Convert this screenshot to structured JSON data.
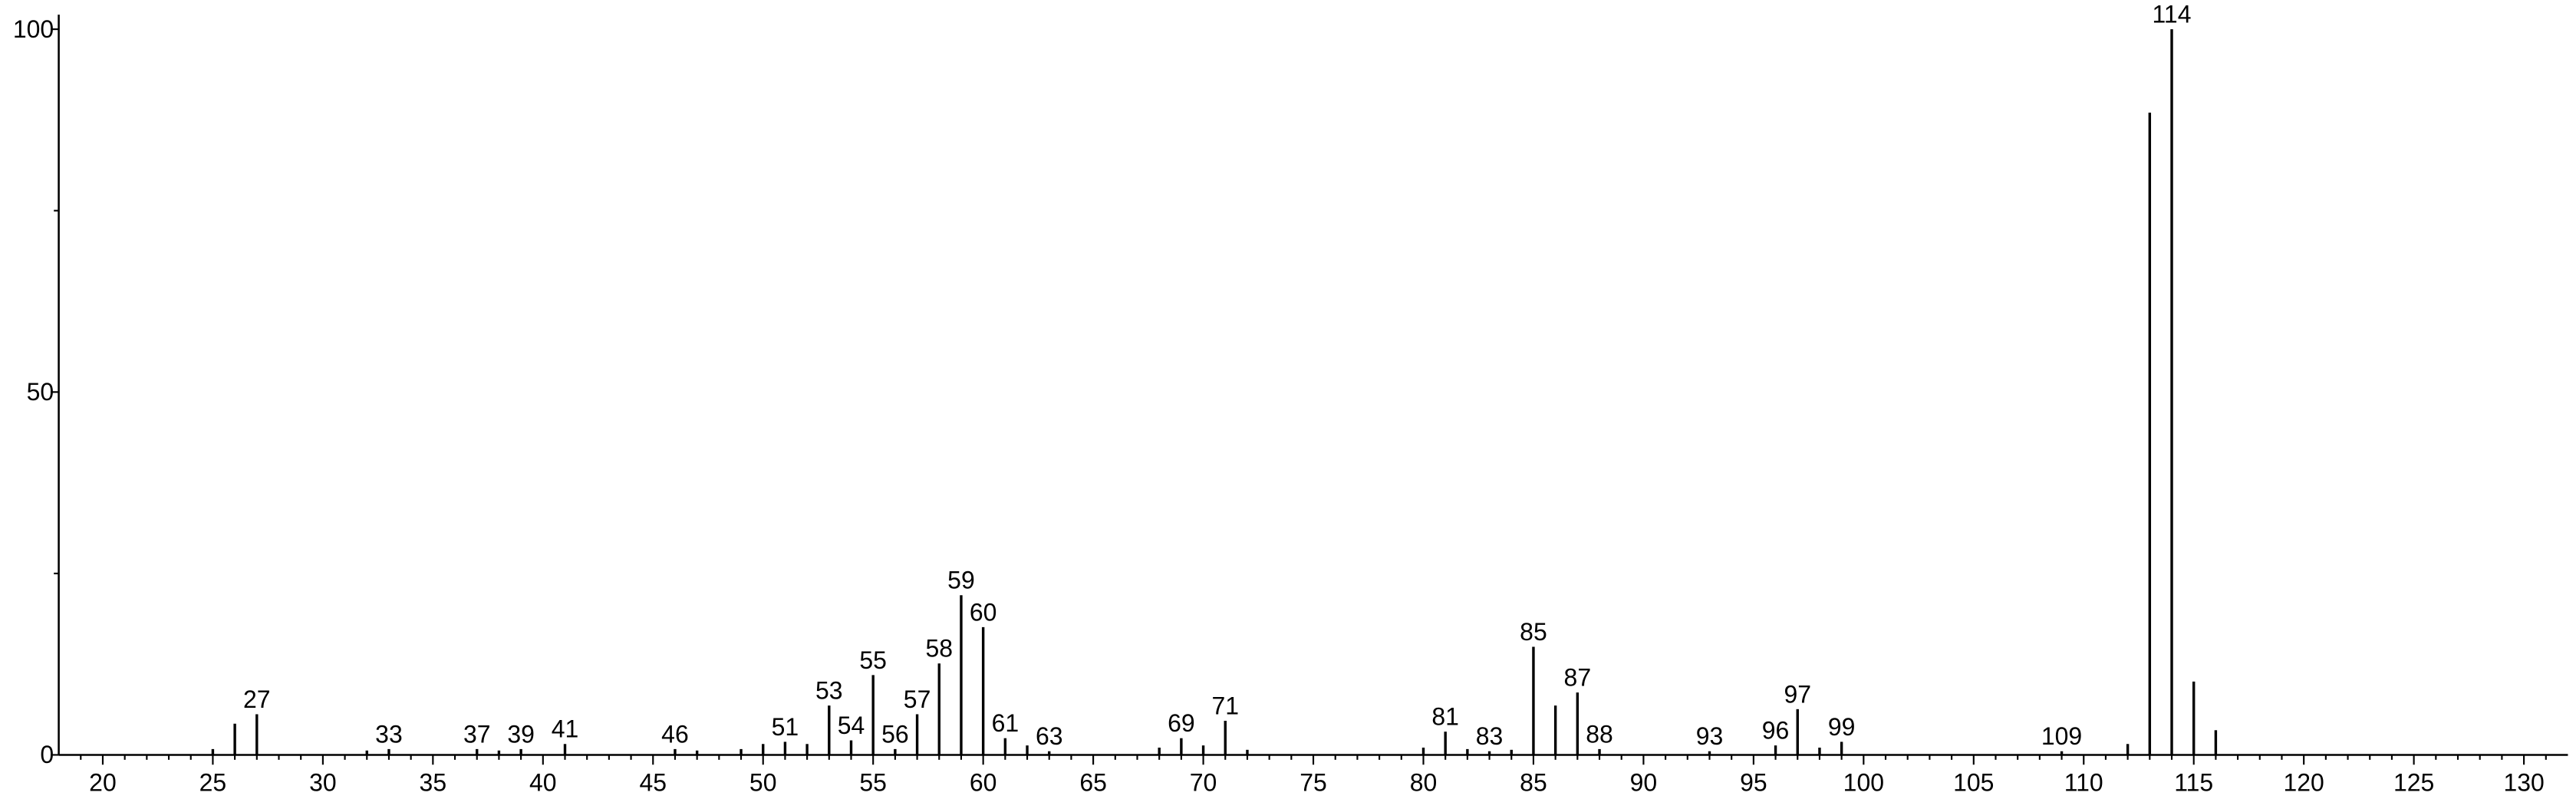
{
  "chart_data": {
    "type": "bar",
    "color": "#000000",
    "x": [
      25,
      26,
      27,
      32,
      33,
      37,
      38,
      39,
      41,
      46,
      47,
      49,
      50,
      51,
      52,
      53,
      54,
      55,
      56,
      57,
      58,
      59,
      60,
      61,
      62,
      63,
      68,
      69,
      70,
      71,
      72,
      80,
      81,
      82,
      83,
      84,
      85,
      86,
      87,
      88,
      93,
      96,
      97,
      98,
      99,
      109,
      112,
      113,
      114,
      115,
      116
    ],
    "values": [
      0.8,
      4.3,
      5.6,
      0.6,
      0.8,
      0.8,
      0.6,
      0.8,
      1.5,
      0.8,
      0.6,
      0.8,
      1.5,
      1.8,
      1.5,
      6.8,
      2,
      11,
      0.8,
      5.6,
      12.6,
      22,
      17.6,
      2.3,
      1.3,
      0.5,
      1,
      2.3,
      1.3,
      4.7,
      0.7,
      1,
      3.2,
      0.8,
      0.5,
      0.7,
      14.9,
      6.8,
      8.6,
      0.8,
      0.5,
      1.3,
      6.3,
      1,
      1.8,
      0.5,
      1.5,
      88.5,
      100,
      10.1,
      3.4
    ],
    "labels": [
      null,
      null,
      "27",
      null,
      "33",
      "37",
      null,
      "39",
      "41",
      "46",
      null,
      null,
      null,
      "51",
      null,
      "53",
      "54",
      "55",
      "56",
      "57",
      "58",
      "59",
      "60",
      "61",
      null,
      "63",
      null,
      "69",
      null,
      "71",
      null,
      null,
      "81",
      null,
      "83",
      null,
      "85",
      null,
      "87",
      "88",
      "93",
      "96",
      "97",
      null,
      "99",
      "109",
      null,
      null,
      "114",
      null,
      null
    ],
    "xlim": [
      18,
      132
    ],
    "ylim": [
      0,
      102
    ],
    "xticks": [
      20,
      25,
      30,
      35,
      40,
      45,
      50,
      55,
      60,
      65,
      70,
      75,
      80,
      85,
      90,
      95,
      100,
      105,
      110,
      115,
      120,
      125,
      130
    ],
    "xminorticks": [
      19,
      21,
      22,
      23,
      24,
      26,
      27,
      28,
      29,
      31,
      32,
      33,
      34,
      36,
      37,
      38,
      39,
      41,
      42,
      43,
      44,
      46,
      47,
      48,
      49,
      51,
      52,
      53,
      54,
      56,
      57,
      58,
      59,
      61,
      62,
      63,
      64,
      66,
      67,
      68,
      69,
      71,
      72,
      73,
      74,
      76,
      77,
      78,
      79,
      81,
      82,
      83,
      84,
      86,
      87,
      88,
      89,
      91,
      92,
      93,
      94,
      96,
      97,
      98,
      99,
      101,
      102,
      103,
      104,
      106,
      107,
      108,
      109,
      111,
      112,
      113,
      114,
      116,
      117,
      118,
      119,
      121,
      122,
      123,
      124,
      126,
      127,
      128,
      129,
      131
    ],
    "yticks": [
      0,
      50,
      100
    ],
    "yminorticks": [
      25,
      75
    ]
  }
}
